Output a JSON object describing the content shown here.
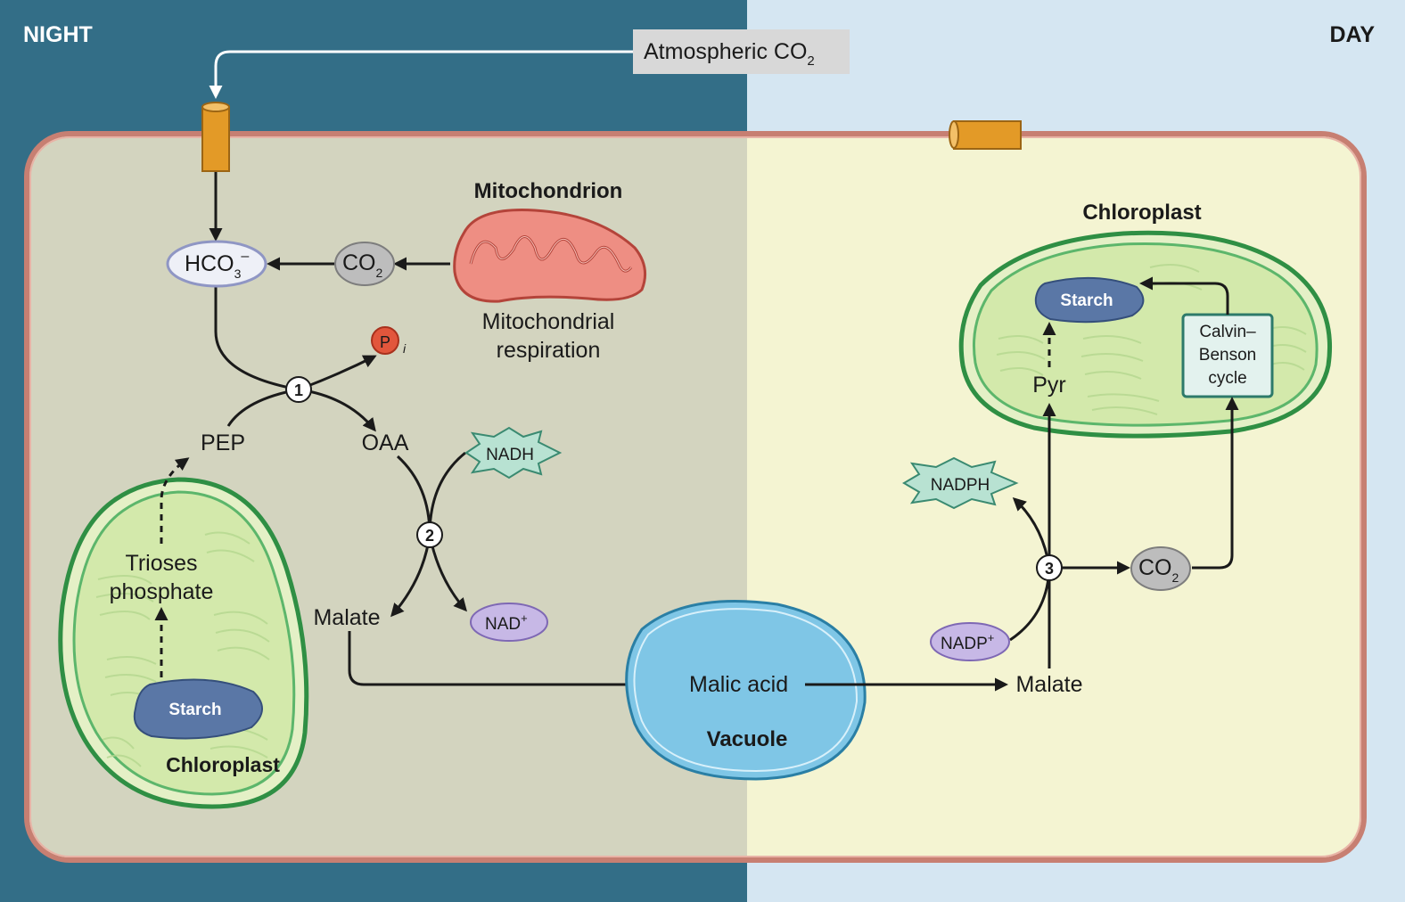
{
  "panels": {
    "night_label": "NIGHT",
    "day_label": "DAY"
  },
  "atmospheric_co2": {
    "text": "Atmospheric CO",
    "sub": "2"
  },
  "night": {
    "hco3": {
      "text": "HCO",
      "sub": "3",
      "sup": "–"
    },
    "co2": {
      "text": "CO",
      "sub": "2"
    },
    "mitochondrion_title": "Mitochondrion",
    "mito_resp_line1": "Mitochondrial",
    "mito_resp_line2": "respiration",
    "pi": {
      "text": "P",
      "sub": "i"
    },
    "step1": "1",
    "pep": "PEP",
    "oaa": "OAA",
    "nadh": "NADH",
    "step2": "2",
    "malate": "Malate",
    "nad": {
      "text": "NAD",
      "sup": "+"
    },
    "trioses_line1": "Trioses",
    "trioses_line2": "phosphate",
    "starch": "Starch",
    "chloroplast": "Chloroplast"
  },
  "vacuole": {
    "malic_acid": "Malic acid",
    "title": "Vacuole"
  },
  "day": {
    "chloroplast": "Chloroplast",
    "starch": "Starch",
    "calvin_line1": "Calvin–",
    "calvin_line2": "Benson",
    "calvin_line3": "cycle",
    "pyr": "Pyr",
    "nadph": "NADPH",
    "step3": "3",
    "co2": {
      "text": "CO",
      "sub": "2"
    },
    "nadp": {
      "text": "NADP",
      "sup": "+"
    },
    "malate": "Malate"
  },
  "colors": {
    "night_bg": "#336e87",
    "day_bg": "#d5e6f2",
    "cell_night": "#d3d4bf",
    "cell_day": "#f4f4d2",
    "cell_border": "#c77f72",
    "channel": "#e39a27",
    "mitochondrion": "#ee8e83",
    "chloroplast_stroke": "#34a04c",
    "chloroplast_fill": "#d3e9ab",
    "starch": "#5a77a6",
    "vacuole": "#7fc6e6",
    "nadh_fill": "#b8e2d2",
    "nad_fill": "#c7b8e6",
    "co2_fill": "#bdbdbd",
    "pi_fill": "#e2563c"
  }
}
